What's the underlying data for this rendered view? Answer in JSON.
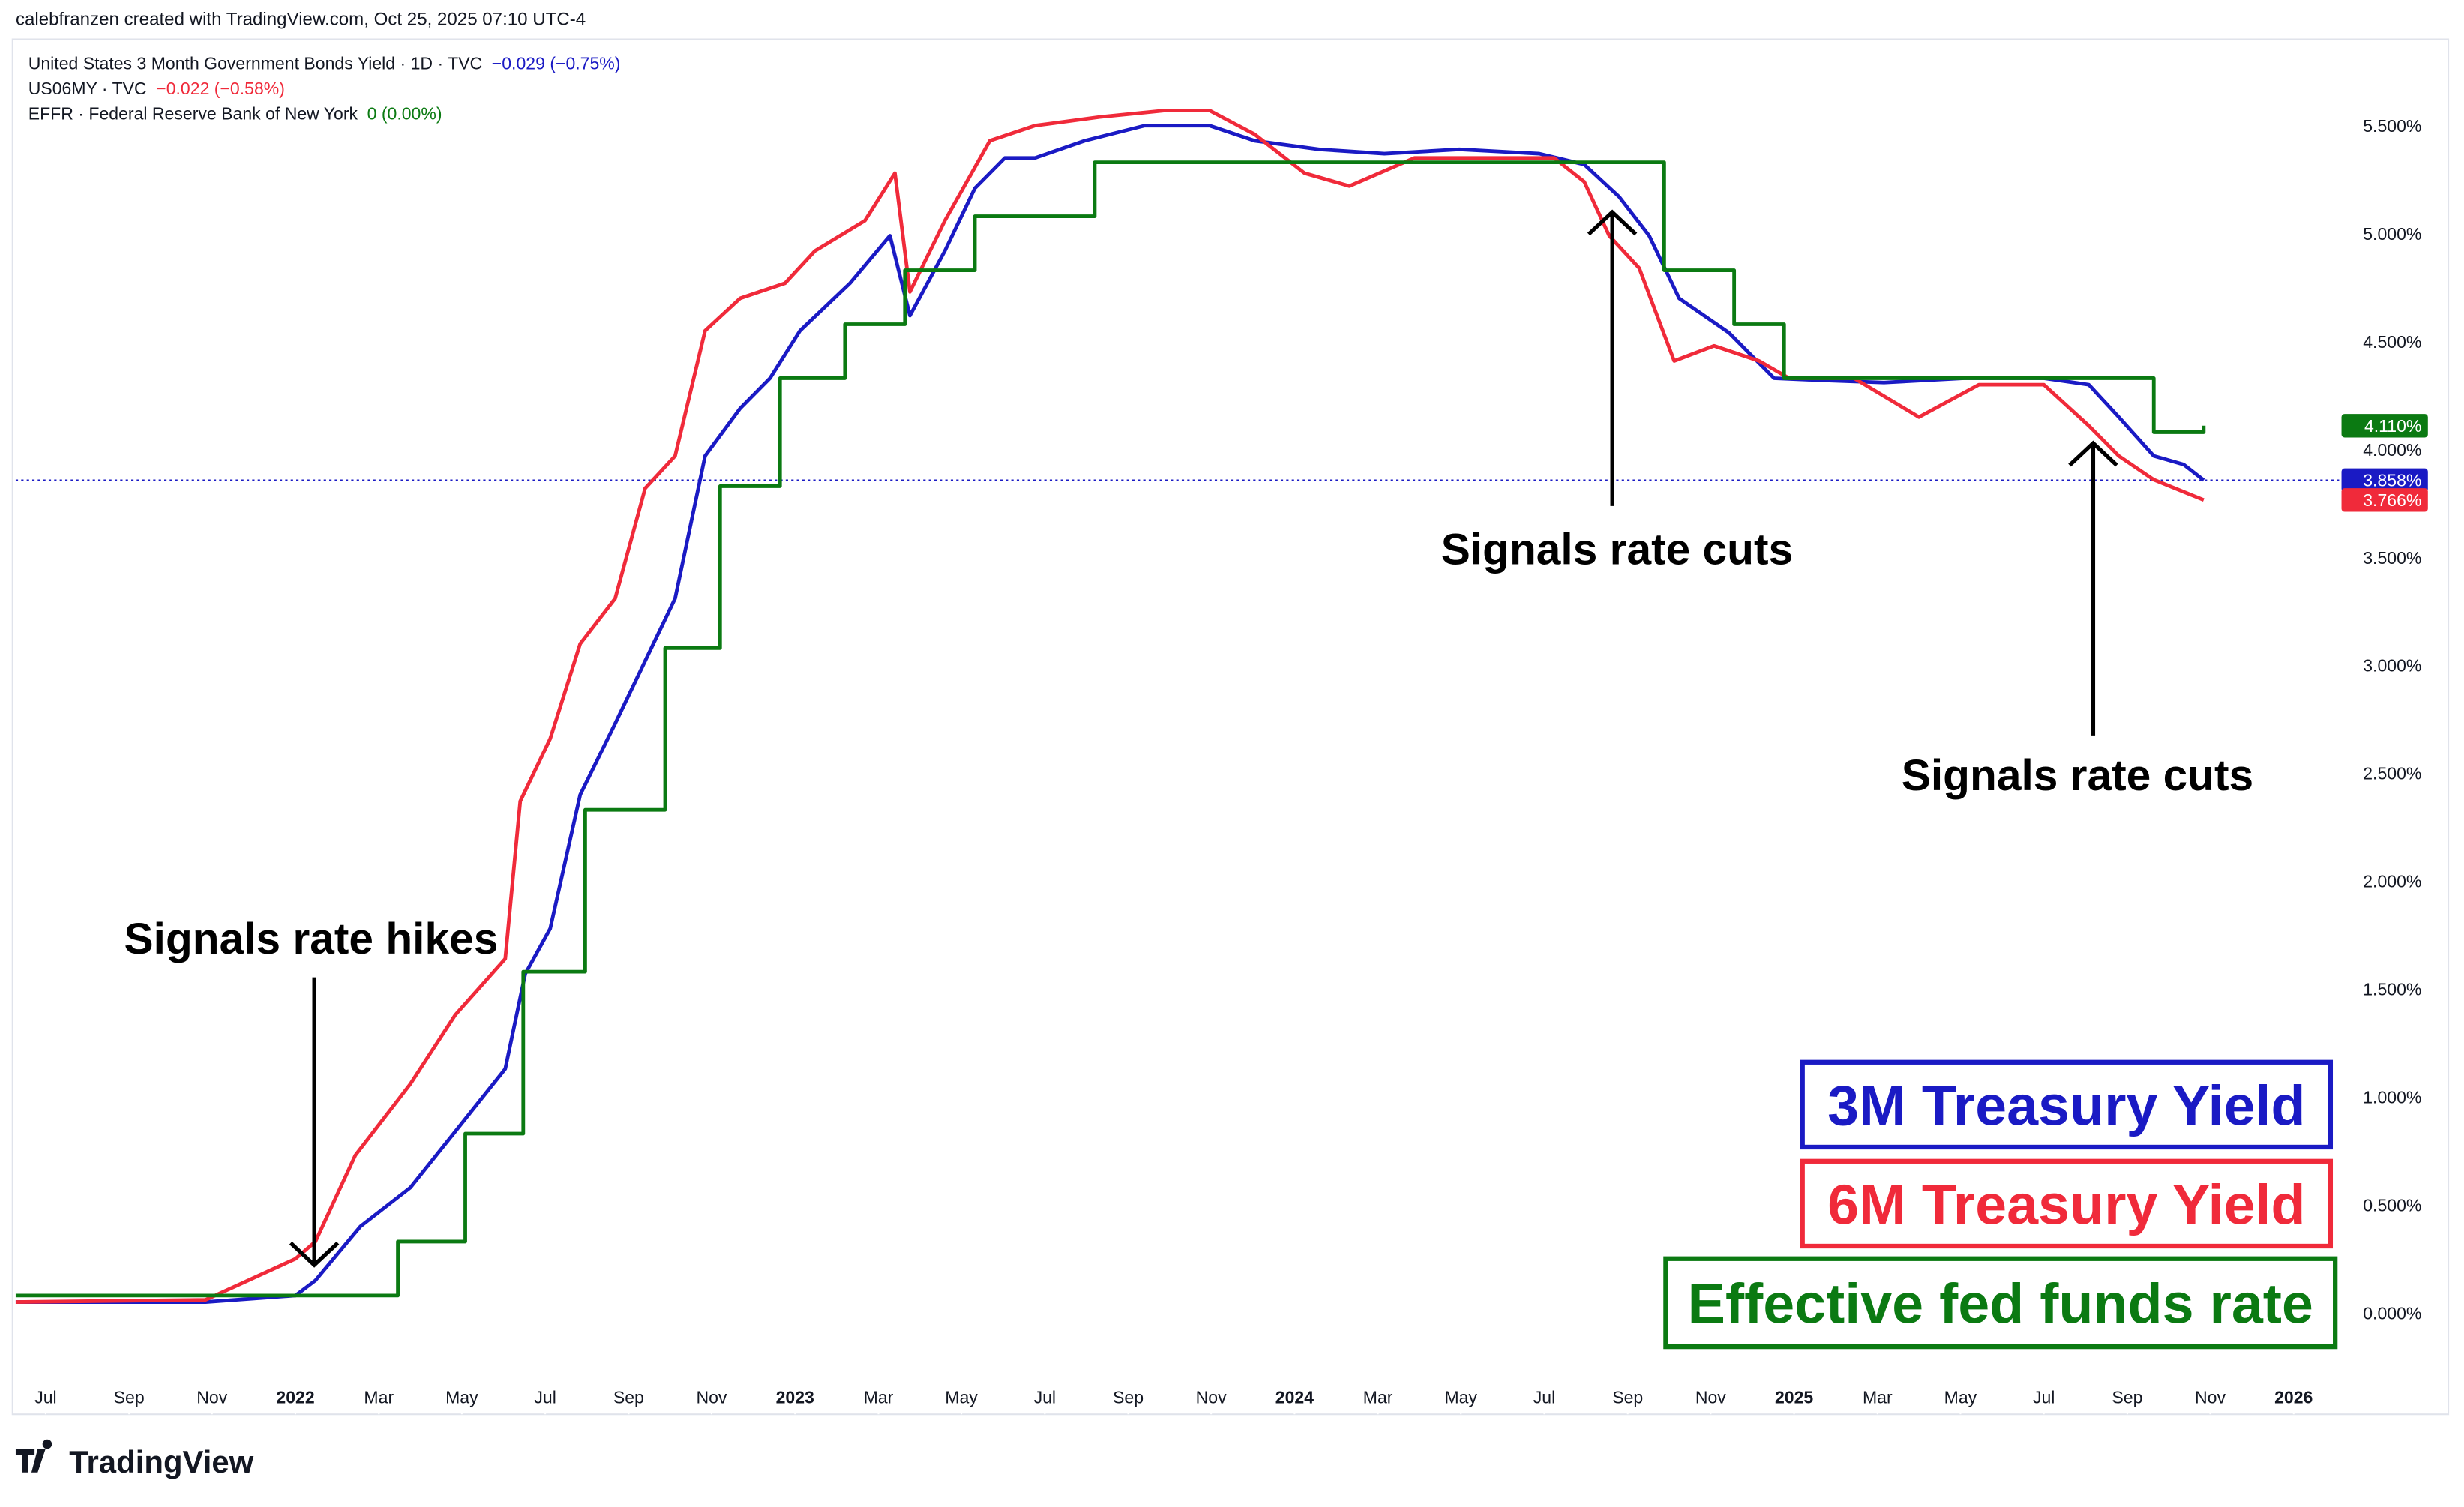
{
  "chart_data": {
    "type": "line",
    "attribution": "calebfranzen created with TradingView.com, Oct 25, 2025 07:10 UTC-4",
    "header_rows": [
      {
        "title": "United States 3 Month Government Bonds Yield · 1D · TVC",
        "change": "−0.029 (−0.75%)"
      },
      {
        "title": "US06MY · TVC",
        "change": "−0.022 (−0.58%)"
      },
      {
        "title": "EFFR · Federal Reserve Bank of New York",
        "change": "0 (0.00%)"
      }
    ],
    "annotations": [
      "Signals rate hikes",
      "Signals rate cuts",
      "Signals rate cuts"
    ],
    "brand": "TradingView",
    "xlim": [
      2021.44,
      2026.08
    ],
    "xticks": [
      {
        "value": 2021.5,
        "label": "Jul"
      },
      {
        "value": 2021.667,
        "label": "Sep"
      },
      {
        "value": 2021.833,
        "label": "Nov"
      },
      {
        "value": 2022,
        "label": "2022"
      },
      {
        "value": 2022.167,
        "label": "Mar"
      },
      {
        "value": 2022.333,
        "label": "May"
      },
      {
        "value": 2022.5,
        "label": "Jul"
      },
      {
        "value": 2022.667,
        "label": "Sep"
      },
      {
        "value": 2022.833,
        "label": "Nov"
      },
      {
        "value": 2023,
        "label": "2023"
      },
      {
        "value": 2023.167,
        "label": "Mar"
      },
      {
        "value": 2023.333,
        "label": "May"
      },
      {
        "value": 2023.5,
        "label": "Jul"
      },
      {
        "value": 2023.667,
        "label": "Sep"
      },
      {
        "value": 2023.833,
        "label": "Nov"
      },
      {
        "value": 2024,
        "label": "2024"
      },
      {
        "value": 2024.167,
        "label": "Mar"
      },
      {
        "value": 2024.333,
        "label": "May"
      },
      {
        "value": 2024.5,
        "label": "Jul"
      },
      {
        "value": 2024.667,
        "label": "Sep"
      },
      {
        "value": 2024.833,
        "label": "Nov"
      },
      {
        "value": 2025,
        "label": "2025"
      },
      {
        "value": 2025.167,
        "label": "Mar"
      },
      {
        "value": 2025.333,
        "label": "May"
      },
      {
        "value": 2025.5,
        "label": "Jul"
      },
      {
        "value": 2025.667,
        "label": "Sep"
      },
      {
        "value": 2025.833,
        "label": "Nov"
      },
      {
        "value": 2026,
        "label": "2026"
      }
    ],
    "ylim": [
      -0.47,
      5.9
    ],
    "yticks": [
      {
        "value": 0,
        "label": "0.000%"
      },
      {
        "value": 0.5,
        "label": "0.500%"
      },
      {
        "value": 1,
        "label": "1.000%"
      },
      {
        "value": 1.5,
        "label": "1.500%"
      },
      {
        "value": 2,
        "label": "2.000%"
      },
      {
        "value": 2.5,
        "label": "2.500%"
      },
      {
        "value": 3,
        "label": "3.000%"
      },
      {
        "value": 3.5,
        "label": "3.500%"
      },
      {
        "value": 4,
        "label": "4.000%"
      },
      {
        "value": 4.5,
        "label": "4.500%"
      },
      {
        "value": 5,
        "label": "5.000%"
      },
      {
        "value": 5.5,
        "label": "5.500%"
      }
    ],
    "series": [
      {
        "name": "3M Treasury Yield",
        "color": "#1a1ac4",
        "step": false,
        "last_label": "3.858%",
        "x": [
          2021.44,
          2021.65,
          2021.82,
          2022.0,
          2022.04,
          2022.13,
          2022.23,
          2022.32,
          2022.42,
          2022.46,
          2022.51,
          2022.57,
          2022.64,
          2022.7,
          2022.76,
          2022.82,
          2022.89,
          2022.95,
          2023.01,
          2023.11,
          2023.19,
          2023.23,
          2023.3,
          2023.36,
          2023.42,
          2023.48,
          2023.58,
          2023.7,
          2023.83,
          2023.92,
          2024.05,
          2024.18,
          2024.33,
          2024.49,
          2024.58,
          2024.65,
          2024.71,
          2024.77,
          2024.87,
          2024.96,
          2025.06,
          2025.18,
          2025.34,
          2025.5,
          2025.59,
          2025.65,
          2025.72,
          2025.78,
          2025.82
        ],
        "values": [
          0.05,
          0.05,
          0.05,
          0.08,
          0.15,
          0.4,
          0.58,
          0.84,
          1.13,
          1.57,
          1.78,
          2.4,
          2.73,
          3.02,
          3.31,
          3.97,
          4.19,
          4.33,
          4.55,
          4.77,
          4.99,
          4.62,
          4.92,
          5.21,
          5.35,
          5.35,
          5.43,
          5.5,
          5.5,
          5.43,
          5.39,
          5.37,
          5.39,
          5.37,
          5.32,
          5.17,
          4.99,
          4.7,
          4.54,
          4.33,
          4.32,
          4.31,
          4.33,
          4.33,
          4.3,
          4.15,
          3.97,
          3.93,
          3.858
        ]
      },
      {
        "name": "6M Treasury Yield",
        "color": "#f02a3a",
        "step": false,
        "last_label": "3.766%",
        "x": [
          2021.44,
          2021.82,
          2022.0,
          2022.04,
          2022.12,
          2022.23,
          2022.32,
          2022.42,
          2022.45,
          2022.51,
          2022.57,
          2022.64,
          2022.7,
          2022.76,
          2022.82,
          2022.89,
          2022.98,
          2023.04,
          2023.14,
          2023.2,
          2023.23,
          2023.3,
          2023.39,
          2023.48,
          2023.61,
          2023.74,
          2023.83,
          2023.92,
          2024.02,
          2024.11,
          2024.24,
          2024.4,
          2024.52,
          2024.58,
          2024.63,
          2024.69,
          2024.76,
          2024.84,
          2024.93,
          2024.99,
          2025.12,
          2025.25,
          2025.37,
          2025.5,
          2025.59,
          2025.65,
          2025.72,
          2025.82
        ],
        "values": [
          0.05,
          0.06,
          0.25,
          0.33,
          0.73,
          1.06,
          1.38,
          1.64,
          2.37,
          2.66,
          3.1,
          3.31,
          3.82,
          3.97,
          4.55,
          4.7,
          4.77,
          4.92,
          5.06,
          5.28,
          4.73,
          5.06,
          5.43,
          5.5,
          5.54,
          5.57,
          5.57,
          5.46,
          5.28,
          5.22,
          5.35,
          5.35,
          5.35,
          5.24,
          4.99,
          4.84,
          4.41,
          4.48,
          4.41,
          4.33,
          4.33,
          4.15,
          4.3,
          4.3,
          4.11,
          3.97,
          3.86,
          3.766
        ]
      },
      {
        "name": "Effective fed funds rate",
        "color": "#0b7a12",
        "step": true,
        "last_label": "4.110%",
        "x": [
          2021.44,
          2022.205,
          2022.34,
          2022.456,
          2022.58,
          2022.74,
          2022.85,
          2022.97,
          2023.1,
          2023.22,
          2023.36,
          2023.6,
          2024.74,
          2024.88,
          2024.98,
          2025.72,
          2025.82
        ],
        "values": [
          0.08,
          0.33,
          0.83,
          1.58,
          2.33,
          3.08,
          3.83,
          4.33,
          4.58,
          4.83,
          5.08,
          5.33,
          4.83,
          4.58,
          4.33,
          4.08,
          4.11
        ]
      }
    ],
    "current_line_series": 0
  }
}
